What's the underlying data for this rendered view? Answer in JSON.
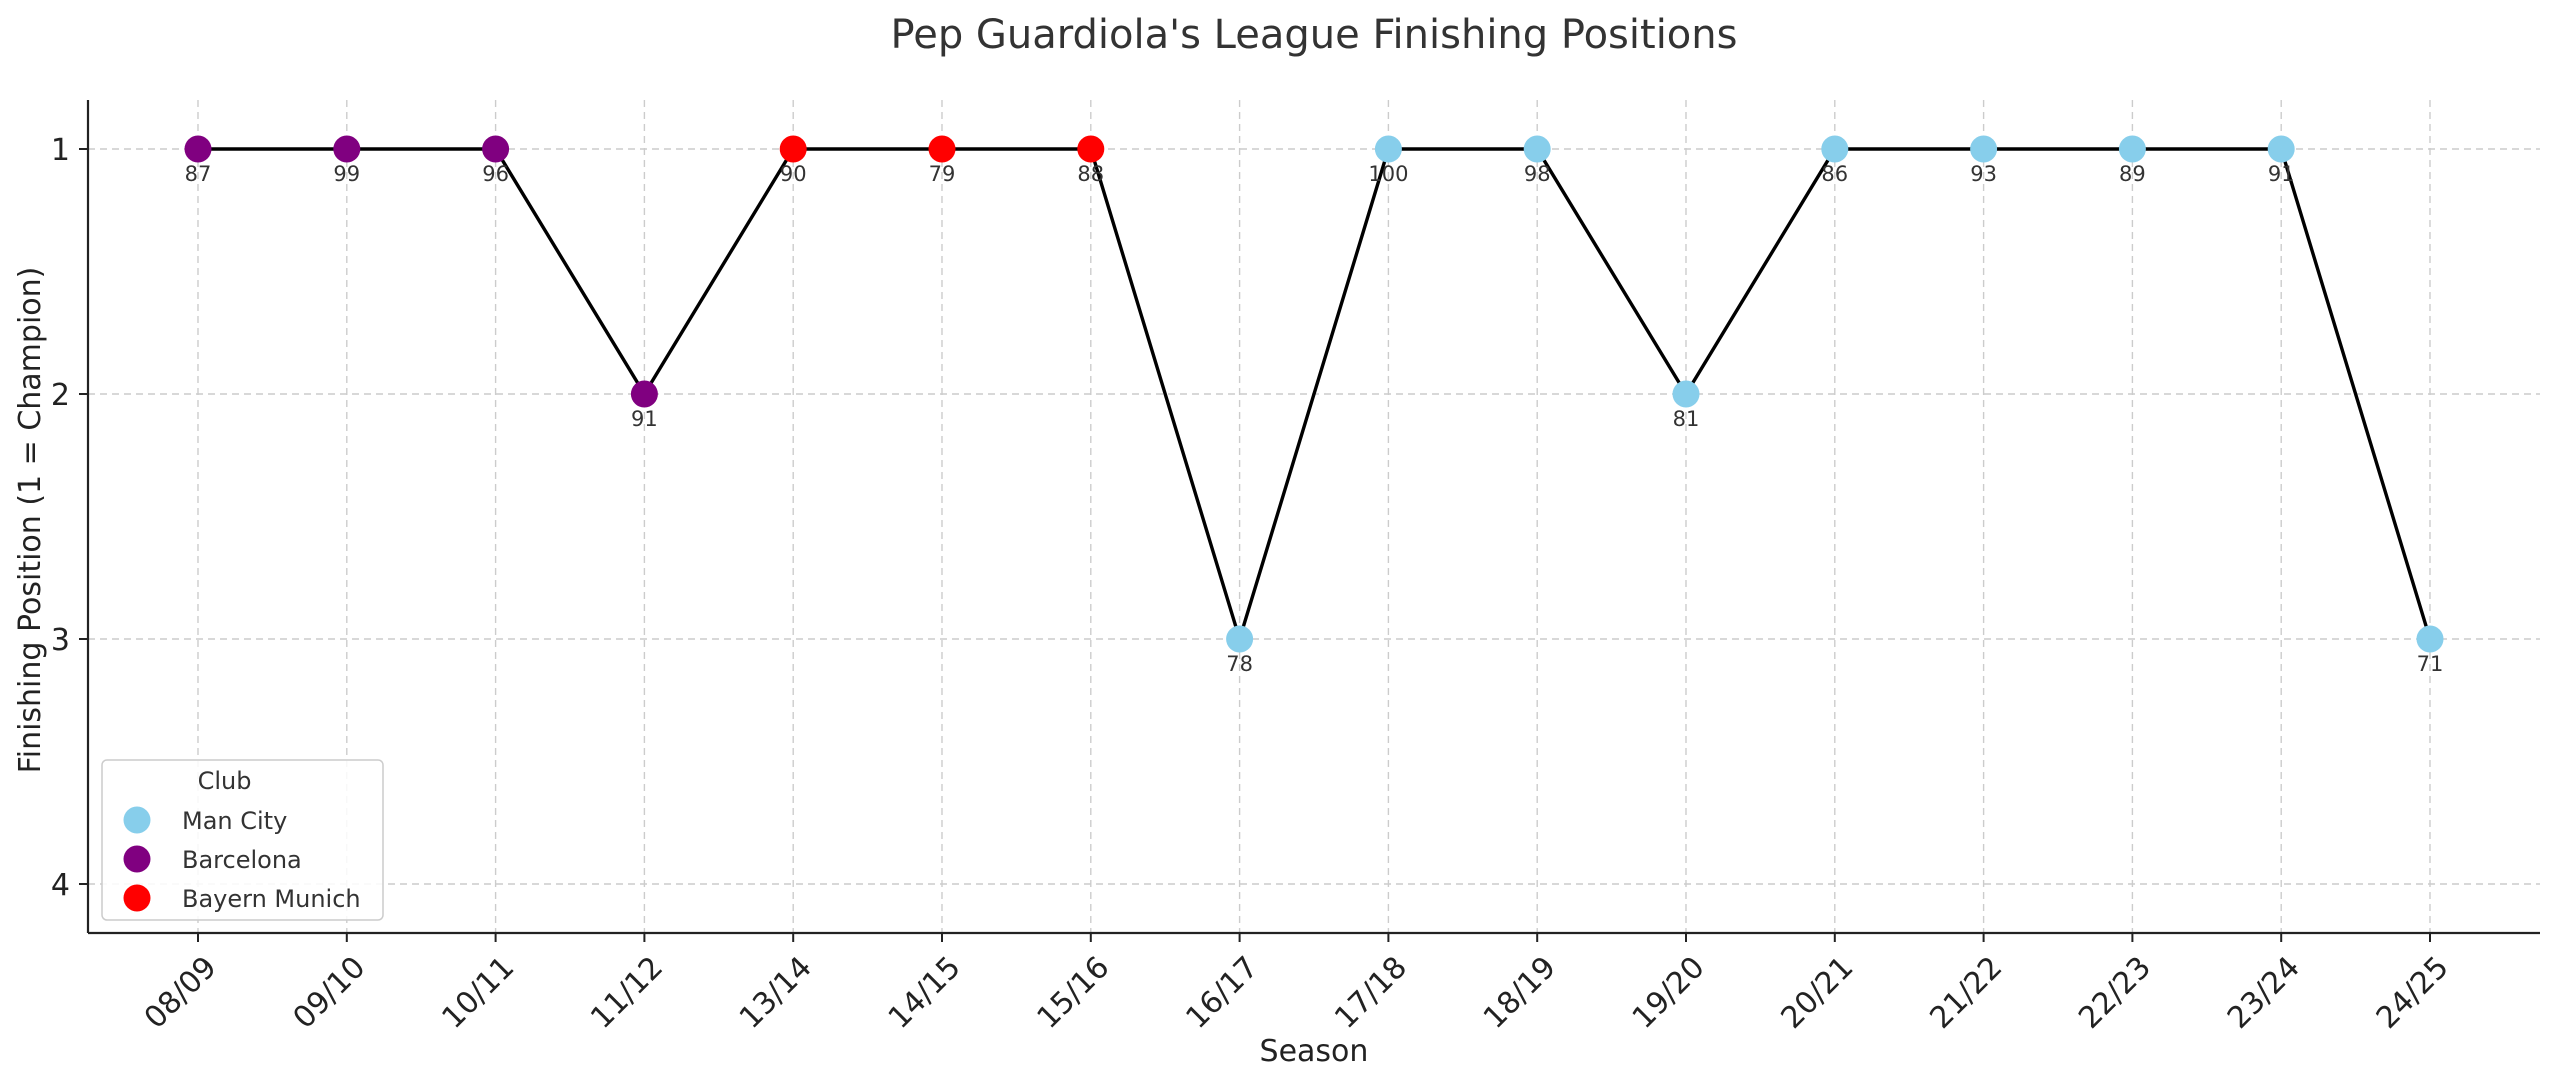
{
  "chart_data": {
    "type": "line",
    "title": "Pep Guardiola's League Finishing Positions",
    "xlabel": "Season",
    "ylabel": "Finishing Position (1 = Champion)",
    "y_ticks": [
      1,
      2,
      3,
      4
    ],
    "ylim": [
      4.2,
      0.8
    ],
    "y_inverted": true,
    "grid": true,
    "line_color": "#000000",
    "legend": {
      "title": "Club",
      "placement": "lower-left",
      "entries": [
        {
          "name": "Man City",
          "color": "#87CEEB"
        },
        {
          "name": "Barcelona",
          "color": "#800080"
        },
        {
          "name": "Bayern Munich",
          "color": "#FF0000"
        }
      ]
    },
    "points": [
      {
        "season": "08/09",
        "position": 1,
        "points": 87,
        "club": "Barcelona"
      },
      {
        "season": "09/10",
        "position": 1,
        "points": 99,
        "club": "Barcelona"
      },
      {
        "season": "10/11",
        "position": 1,
        "points": 96,
        "club": "Barcelona"
      },
      {
        "season": "11/12",
        "position": 2,
        "points": 91,
        "club": "Barcelona"
      },
      {
        "season": "13/14",
        "position": 1,
        "points": 90,
        "club": "Bayern Munich"
      },
      {
        "season": "14/15",
        "position": 1,
        "points": 79,
        "club": "Bayern Munich"
      },
      {
        "season": "15/16",
        "position": 1,
        "points": 88,
        "club": "Bayern Munich"
      },
      {
        "season": "16/17",
        "position": 3,
        "points": 78,
        "club": "Man City"
      },
      {
        "season": "17/18",
        "position": 1,
        "points": 100,
        "club": "Man City"
      },
      {
        "season": "18/19",
        "position": 1,
        "points": 98,
        "club": "Man City"
      },
      {
        "season": "19/20",
        "position": 2,
        "points": 81,
        "club": "Man City"
      },
      {
        "season": "20/21",
        "position": 1,
        "points": 86,
        "club": "Man City"
      },
      {
        "season": "21/22",
        "position": 1,
        "points": 93,
        "club": "Man City"
      },
      {
        "season": "22/23",
        "position": 1,
        "points": 89,
        "club": "Man City"
      },
      {
        "season": "23/24",
        "position": 1,
        "points": 91,
        "club": "Man City"
      },
      {
        "season": "24/25",
        "position": 3,
        "points": 71,
        "club": "Man City"
      }
    ]
  }
}
